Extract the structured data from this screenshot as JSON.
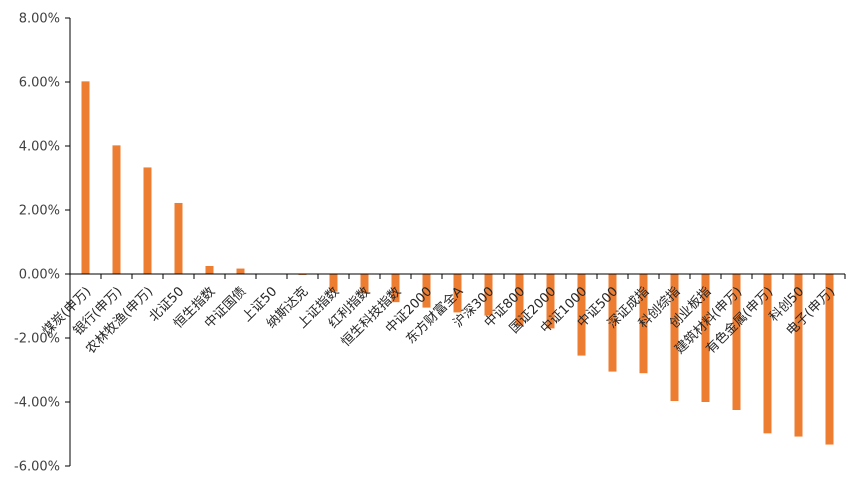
{
  "chart_data": {
    "type": "bar",
    "title": "",
    "xlabel": "",
    "ylabel": "",
    "ylim": [
      -6,
      8
    ],
    "yticks": [
      -6,
      -4,
      -2,
      0,
      2,
      4,
      6,
      8
    ],
    "ytick_labels": [
      "-6.00%",
      "-4.00%",
      "-2.00%",
      "0.00%",
      "2.00%",
      "4.00%",
      "6.00%",
      "8.00%"
    ],
    "y_format": "percent",
    "grid": false,
    "legend": "none",
    "bar_color": "#ED7D31",
    "categories": [
      "煤炭(申万)",
      "银行(申万)",
      "农林牧渔(申万)",
      "北证50",
      "恒生指数",
      "中证国债",
      "上证50",
      "纳斯达克",
      "上证指数",
      "红利指数",
      "恒生科技指数",
      "中证2000",
      "东方财富全A",
      "沪深300",
      "中证800",
      "国证2000",
      "中证1000",
      "中证500",
      "深证成指",
      "科创综指",
      "创业板指",
      "建筑材料(申万)",
      "有色金属(申万)",
      "科创50",
      "电子(申万)"
    ],
    "values": [
      6.02,
      4.02,
      3.33,
      2.22,
      0.25,
      0.17,
      0.0,
      -0.03,
      -0.55,
      -0.62,
      -0.88,
      -1.05,
      -1.2,
      -1.3,
      -1.62,
      -1.7,
      -2.55,
      -3.05,
      -3.1,
      -3.97,
      -4.0,
      -4.25,
      -4.98,
      -5.08,
      -5.33
    ]
  }
}
